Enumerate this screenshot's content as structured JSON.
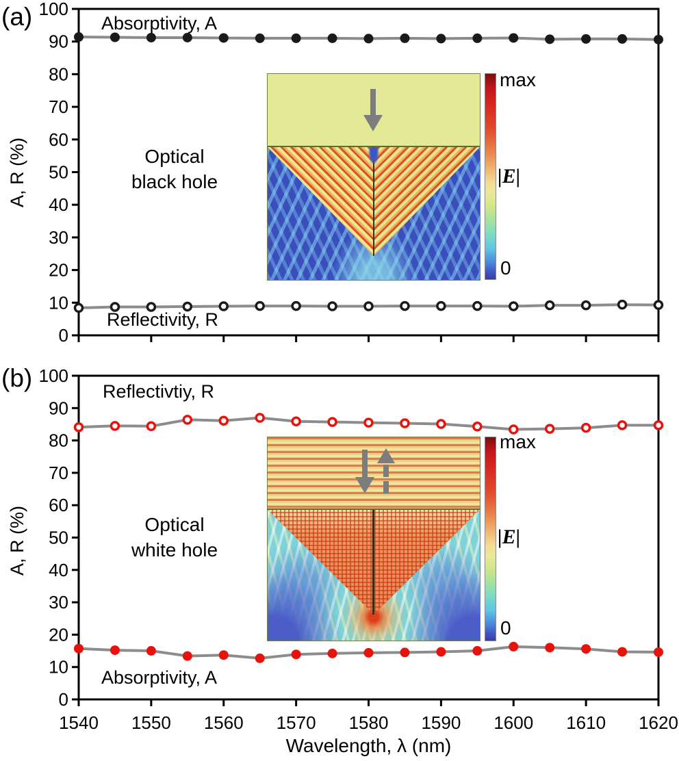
{
  "axes": {
    "xlabel": "Wavelength, λ (nm)",
    "ylabel_a": "A, R (%)",
    "ylabel_b": "A, R (%)",
    "x_tick_labels": [
      "1540",
      "1550",
      "1560",
      "1570",
      "1580",
      "1590",
      "1600",
      "1610",
      "1620"
    ],
    "y_tick_labels": [
      "0",
      "10",
      "20",
      "30",
      "40",
      "50",
      "60",
      "70",
      "80",
      "90",
      "100"
    ]
  },
  "panel_a": {
    "label": "(a)",
    "top_series_label": "Absorptivity, A",
    "bottom_series_label": "Reflectivity, R",
    "region_label_line1": "Optical",
    "region_label_line2": "black hole",
    "colorbar_max": "max",
    "colorbar_field": "|E|",
    "colorbar_zero": "0"
  },
  "panel_b": {
    "label": "(b)",
    "top_series_label": "Reflectivtiy, R",
    "bottom_series_label": "Absorptivity, A",
    "region_label_line1": "Optical",
    "region_label_line2": "white hole",
    "colorbar_max": "max",
    "colorbar_field": "|E|",
    "colorbar_zero": "0"
  },
  "colors": {
    "line_gray": "#8c8c8c",
    "black_marker": "#1a1a1a",
    "red_marker": "#e8120c",
    "axis": "#000000"
  },
  "chart_data": [
    {
      "type": "line",
      "panel": "a",
      "title": "Optical black hole",
      "xlabel": "Wavelength, λ (nm)",
      "ylabel": "A, R (%)",
      "x_range": [
        1540,
        1620
      ],
      "y_range": [
        0,
        100
      ],
      "x_major_ticks": [
        1540,
        1550,
        1560,
        1570,
        1580,
        1590,
        1600,
        1610,
        1620
      ],
      "y_major_ticks": [
        0,
        10,
        20,
        30,
        40,
        50,
        60,
        70,
        80,
        90,
        100
      ],
      "x": [
        1540,
        1545,
        1550,
        1555,
        1560,
        1565,
        1570,
        1575,
        1580,
        1585,
        1590,
        1595,
        1600,
        1605,
        1610,
        1615,
        1620
      ],
      "series": [
        {
          "name": "Absorptivity, A",
          "marker": "filled-circle",
          "marker_color": "#1a1a1a",
          "line_color": "#8c8c8c",
          "values": [
            91.4,
            91.3,
            91.2,
            91.2,
            91.1,
            91.0,
            91.0,
            91.0,
            90.9,
            91.0,
            90.9,
            91.0,
            91.1,
            90.7,
            90.8,
            90.8,
            90.6
          ]
        },
        {
          "name": "Reflectivity, R",
          "marker": "open-circle",
          "marker_color": "#1a1a1a",
          "line_color": "#8c8c8c",
          "values": [
            8.4,
            8.7,
            8.7,
            8.8,
            8.9,
            9.0,
            9.0,
            8.9,
            8.9,
            9.0,
            9.0,
            9.0,
            8.9,
            9.2,
            9.2,
            9.4,
            9.3
          ]
        }
      ],
      "inset_colorbar_labels": [
        "max",
        "|E|",
        "0"
      ]
    },
    {
      "type": "line",
      "panel": "b",
      "title": "Optical white hole",
      "xlabel": "Wavelength, λ (nm)",
      "ylabel": "A, R (%)",
      "x_range": [
        1540,
        1620
      ],
      "y_range": [
        0,
        100
      ],
      "x_major_ticks": [
        1540,
        1550,
        1560,
        1570,
        1580,
        1590,
        1600,
        1610,
        1620
      ],
      "y_major_ticks": [
        0,
        10,
        20,
        30,
        40,
        50,
        60,
        70,
        80,
        90,
        100
      ],
      "x": [
        1540,
        1545,
        1550,
        1555,
        1560,
        1565,
        1570,
        1575,
        1580,
        1585,
        1590,
        1595,
        1600,
        1605,
        1610,
        1615,
        1620
      ],
      "series": [
        {
          "name": "Reflectivtiy, R",
          "marker": "open-circle",
          "marker_color": "#e8120c",
          "line_color": "#8c8c8c",
          "values": [
            84.1,
            84.5,
            84.4,
            86.4,
            86.1,
            87.0,
            85.9,
            85.7,
            85.5,
            85.3,
            85.1,
            84.3,
            83.4,
            83.6,
            83.9,
            84.7,
            84.7
          ]
        },
        {
          "name": "Absorptivity, A",
          "marker": "filled-circle",
          "marker_color": "#e8120c",
          "line_color": "#8c8c8c",
          "values": [
            15.7,
            15.2,
            15.0,
            13.4,
            13.7,
            12.7,
            13.9,
            14.2,
            14.4,
            14.5,
            14.7,
            15.0,
            16.3,
            16.0,
            15.6,
            14.7,
            14.6
          ]
        }
      ],
      "inset_colorbar_labels": [
        "max",
        "|E|",
        "0"
      ]
    }
  ]
}
